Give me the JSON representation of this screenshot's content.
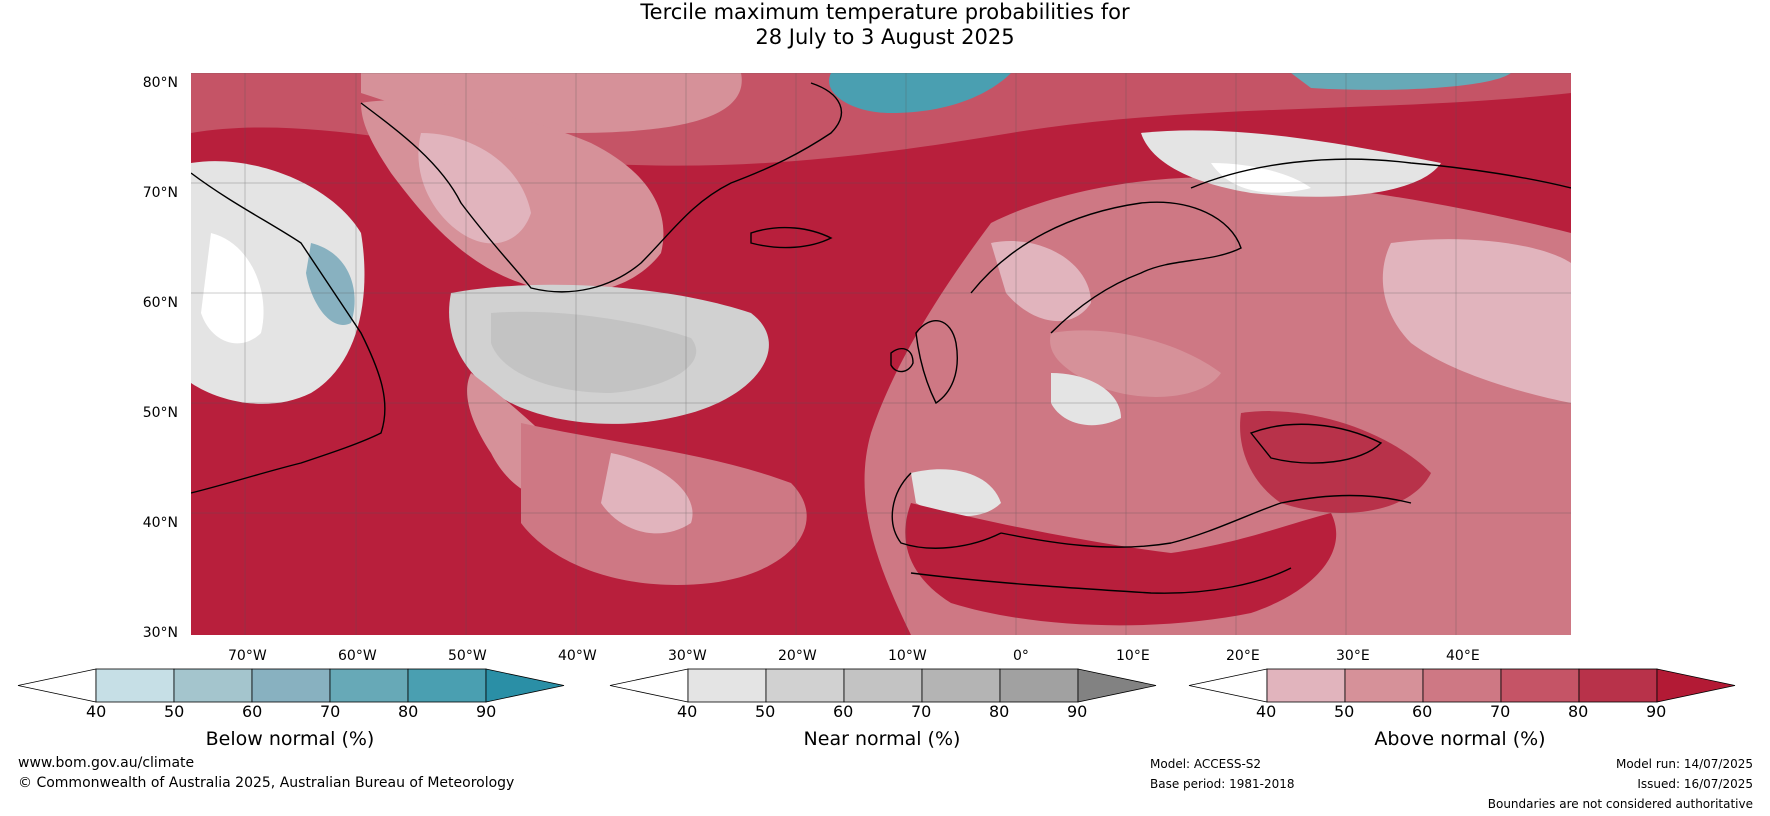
{
  "title": {
    "line1": "Tercile maximum temperature probabilities for",
    "line2": "28 July to 3 August 2025"
  },
  "map": {
    "lat_labels": [
      "80°N",
      "70°N",
      "60°N",
      "50°N",
      "40°N",
      "30°N"
    ],
    "lon_labels": [
      "70°W",
      "60°W",
      "50°W",
      "40°W",
      "30°W",
      "20°W",
      "10°W",
      "0°",
      "10°E",
      "20°E",
      "30°E",
      "40°E"
    ]
  },
  "colorbars": [
    {
      "label": "Below normal (%)",
      "ticks": [
        "40",
        "50",
        "60",
        "70",
        "80",
        "90"
      ],
      "colors": [
        "#c6dfe6",
        "#a4c5cd",
        "#88b1c0",
        "#67a9b7",
        "#4a9fb1",
        "#2a8fa6"
      ]
    },
    {
      "label": "Near normal (%)",
      "ticks": [
        "40",
        "50",
        "60",
        "70",
        "80",
        "90"
      ],
      "colors": [
        "#e4e4e4",
        "#d1d1d1",
        "#c3c3c3",
        "#b4b4b4",
        "#a1a1a1",
        "#828282"
      ]
    },
    {
      "label": "Above normal (%)",
      "ticks": [
        "40",
        "50",
        "60",
        "70",
        "80",
        "90"
      ],
      "colors": [
        "#e1b4bd",
        "#d69199",
        "#ce7884",
        "#c55466",
        "#b8324a",
        "#b31a35"
      ]
    }
  ],
  "footer": {
    "url": "www.bom.gov.au/climate",
    "copyright": "© Commonwealth of Australia 2025, Australian Bureau of Meteorology",
    "model": "Model: ACCESS-S2",
    "base_period": "Base period: 1981-2018",
    "model_run": "Model run: 14/07/2025",
    "issued": "Issued: 16/07/2025",
    "disclaimer": "Boundaries are not considered authoritative"
  }
}
